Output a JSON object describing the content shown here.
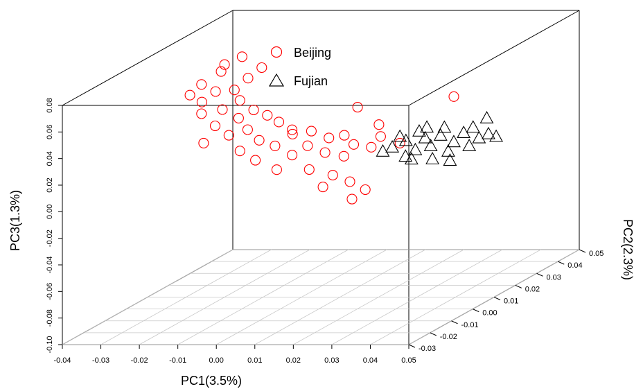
{
  "chart_data": {
    "type": "scatter",
    "subtype": "3d-scatter",
    "title": "",
    "xlabel": "PC1(3.5%)",
    "ylabel": "PC3(1.3%)",
    "zlabel": "PC2(2.3%)",
    "xlim": [
      -0.04,
      0.05
    ],
    "ylim": [
      -0.1,
      0.08
    ],
    "zlim": [
      -0.03,
      0.05
    ],
    "xticks": [
      "-0.04",
      "-0.03",
      "-0.02",
      "-0.01",
      "0.00",
      "0.01",
      "0.02",
      "0.03",
      "0.04",
      "0.05"
    ],
    "yticks": [
      "-0.10",
      "-0.08",
      "-0.06",
      "-0.04",
      "-0.02",
      "0.00",
      "0.02",
      "0.04",
      "0.06",
      "0.08"
    ],
    "zticks": [
      "-0.03",
      "-0.02",
      "-0.01",
      "0.00",
      "0.01",
      "0.02",
      "0.03",
      "0.04",
      "0.05"
    ],
    "grid": "floor",
    "legend_position": "top-center",
    "series": [
      {
        "name": "Beijing",
        "marker": "circle",
        "color": "#ff0000",
        "points": [
          {
            "x": -0.02,
            "y": 0.075,
            "z": 0.01
          },
          {
            "x": -0.022,
            "y": 0.068,
            "z": 0.012
          },
          {
            "x": -0.012,
            "y": 0.07,
            "z": 0.013
          },
          {
            "x": -0.026,
            "y": 0.06,
            "z": 0.01
          },
          {
            "x": -0.015,
            "y": 0.063,
            "z": 0.012
          },
          {
            "x": -0.018,
            "y": 0.055,
            "z": 0.011
          },
          {
            "x": -0.024,
            "y": 0.052,
            "z": 0.013
          },
          {
            "x": -0.016,
            "y": 0.048,
            "z": 0.01
          },
          {
            "x": -0.027,
            "y": 0.045,
            "z": 0.012
          },
          {
            "x": -0.02,
            "y": 0.042,
            "z": 0.009
          },
          {
            "x": -0.013,
            "y": 0.04,
            "z": 0.011
          },
          {
            "x": -0.026,
            "y": 0.038,
            "z": 0.01
          },
          {
            "x": -0.01,
            "y": 0.035,
            "z": 0.012
          },
          {
            "x": -0.018,
            "y": 0.032,
            "z": 0.013
          },
          {
            "x": -0.023,
            "y": 0.028,
            "z": 0.011
          },
          {
            "x": -0.014,
            "y": 0.026,
            "z": 0.01
          },
          {
            "x": -0.007,
            "y": 0.03,
            "z": 0.012
          },
          {
            "x": -0.003,
            "y": 0.025,
            "z": 0.011
          },
          {
            "x": -0.02,
            "y": 0.02,
            "z": 0.012
          },
          {
            "x": -0.011,
            "y": 0.018,
            "z": 0.01
          },
          {
            "x": -0.026,
            "y": 0.015,
            "z": 0.011
          },
          {
            "x": -0.004,
            "y": 0.02,
            "z": 0.013
          },
          {
            "x": 0.002,
            "y": 0.024,
            "z": 0.011
          },
          {
            "x": 0.006,
            "y": 0.018,
            "z": 0.012
          },
          {
            "x": -0.016,
            "y": 0.01,
            "z": 0.01
          },
          {
            "x": -0.008,
            "y": 0.012,
            "z": 0.012
          },
          {
            "x": 0.001,
            "y": 0.013,
            "z": 0.011
          },
          {
            "x": 0.01,
            "y": 0.02,
            "z": 0.012
          },
          {
            "x": 0.013,
            "y": 0.014,
            "z": 0.011
          },
          {
            "x": -0.012,
            "y": 0.003,
            "z": 0.01
          },
          {
            "x": -0.003,
            "y": 0.006,
            "z": 0.011
          },
          {
            "x": 0.005,
            "y": 0.007,
            "z": 0.012
          },
          {
            "x": 0.011,
            "y": 0.006,
            "z": 0.01
          },
          {
            "x": 0.017,
            "y": 0.011,
            "z": 0.012
          },
          {
            "x": 0.02,
            "y": 0.02,
            "z": 0.011
          },
          {
            "x": -0.007,
            "y": -0.005,
            "z": 0.011
          },
          {
            "x": 0.002,
            "y": -0.004,
            "z": 0.01
          },
          {
            "x": 0.007,
            "y": -0.01,
            "z": 0.012
          },
          {
            "x": 0.012,
            "y": -0.014,
            "z": 0.011
          },
          {
            "x": 0.016,
            "y": -0.02,
            "z": 0.011
          },
          {
            "x": 0.012,
            "y": -0.028,
            "z": 0.012
          },
          {
            "x": 0.005,
            "y": -0.018,
            "z": 0.011
          },
          {
            "x": 0.025,
            "y": 0.015,
            "z": 0.011
          },
          {
            "x": 0.019,
            "y": 0.028,
            "z": 0.012
          },
          {
            "x": 0.039,
            "y": 0.05,
            "z": 0.011
          },
          {
            "x": 0.014,
            "y": 0.042,
            "z": 0.011
          },
          {
            "x": -0.029,
            "y": 0.052,
            "z": 0.01
          },
          {
            "x": -0.016,
            "y": 0.08,
            "z": 0.011
          }
        ]
      },
      {
        "name": "Fujian",
        "marker": "triangle",
        "color": "#000000",
        "points": [
          {
            "x": 0.023,
            "y": 0.012,
            "z": 0.011
          },
          {
            "x": 0.026,
            "y": 0.016,
            "z": 0.012
          },
          {
            "x": 0.029,
            "y": 0.01,
            "z": 0.011
          },
          {
            "x": 0.031,
            "y": 0.018,
            "z": 0.012
          },
          {
            "x": 0.027,
            "y": 0.006,
            "z": 0.01
          },
          {
            "x": 0.033,
            "y": 0.013,
            "z": 0.011
          },
          {
            "x": 0.035,
            "y": 0.02,
            "z": 0.012
          },
          {
            "x": 0.03,
            "y": 0.024,
            "z": 0.011
          },
          {
            "x": 0.037,
            "y": 0.008,
            "z": 0.012
          },
          {
            "x": 0.039,
            "y": 0.016,
            "z": 0.011
          },
          {
            "x": 0.034,
            "y": 0.004,
            "z": 0.01
          },
          {
            "x": 0.041,
            "y": 0.022,
            "z": 0.012
          },
          {
            "x": 0.043,
            "y": 0.013,
            "z": 0.011
          },
          {
            "x": 0.036,
            "y": 0.026,
            "z": 0.012
          },
          {
            "x": 0.025,
            "y": 0.02,
            "z": 0.011
          },
          {
            "x": 0.032,
            "y": 0.027,
            "z": 0.011
          },
          {
            "x": 0.045,
            "y": 0.018,
            "z": 0.012
          },
          {
            "x": 0.028,
            "y": 0.003,
            "z": 0.011
          },
          {
            "x": 0.038,
            "y": 0.002,
            "z": 0.011
          },
          {
            "x": 0.02,
            "y": 0.008,
            "z": 0.012
          },
          {
            "x": 0.044,
            "y": 0.027,
            "z": 0.011
          },
          {
            "x": 0.048,
            "y": 0.022,
            "z": 0.011
          },
          {
            "x": 0.047,
            "y": 0.033,
            "z": 0.012
          },
          {
            "x": 0.05,
            "y": 0.02,
            "z": 0.011
          }
        ]
      }
    ]
  }
}
